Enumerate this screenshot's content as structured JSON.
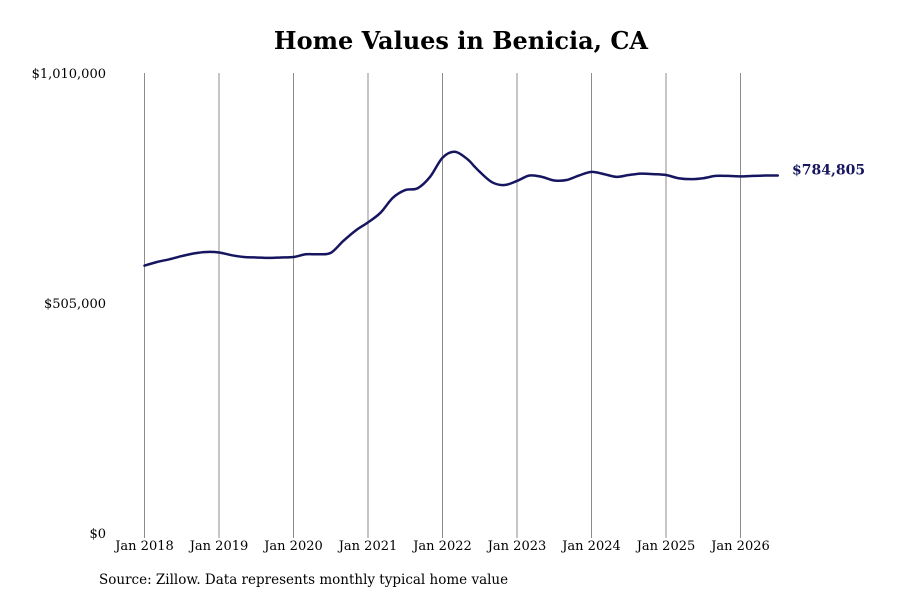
{
  "chart_data": {
    "type": "line",
    "title": "Home Values in Benicia, CA",
    "xlabel": "",
    "ylabel": "",
    "ylim": [
      0,
      1010000
    ],
    "y_ticks": [
      "$0",
      "$505,000",
      "$1,010,000"
    ],
    "x_ticks": [
      "Jan 2018",
      "Jan 2019",
      "Jan 2020",
      "Jan 2021",
      "Jan 2022",
      "Jan 2023",
      "Jan 2024",
      "Jan 2025",
      "Jan 2026"
    ],
    "grid": {
      "vertical": true,
      "horizontal": false
    },
    "line_color": "#151560",
    "grid_color": "#8c8c8c",
    "end_label": "$784,805",
    "series": [
      {
        "x": [
          "2018-01",
          "2018-03",
          "2018-05",
          "2018-07",
          "2018-09",
          "2018-11",
          "2019-01",
          "2019-03",
          "2019-05",
          "2019-07",
          "2019-09",
          "2019-11",
          "2020-01",
          "2020-03",
          "2020-05",
          "2020-07",
          "2020-09",
          "2020-11",
          "2021-01",
          "2021-03",
          "2021-05",
          "2021-07",
          "2021-09",
          "2021-11",
          "2022-01",
          "2022-03",
          "2022-05",
          "2022-06",
          "2022-07",
          "2022-09",
          "2022-11",
          "2023-01",
          "2023-03",
          "2023-05",
          "2023-07",
          "2023-09",
          "2023-11",
          "2024-01",
          "2024-03",
          "2024-05",
          "2024-07",
          "2024-09",
          "2024-11",
          "2025-01",
          "2025-03",
          "2025-05",
          "2025-07",
          "2025-09",
          "2025-11",
          "2026-01",
          "2026-03",
          "2026-05",
          "2026-07"
        ],
        "values": [
          587000,
          595000,
          601000,
          608000,
          614000,
          617000,
          616000,
          610000,
          606000,
          605000,
          604000,
          605000,
          606000,
          612000,
          612000,
          615000,
          641000,
          664000,
          682000,
          703000,
          736000,
          753000,
          757000,
          782000,
          824000,
          837000,
          821000,
          807000,
          793000,
          770000,
          764000,
          773000,
          785000,
          782000,
          774000,
          775000,
          785000,
          793000,
          788000,
          782000,
          786000,
          789000,
          788000,
          786000,
          779000,
          777000,
          779000,
          784000,
          784000,
          783000,
          784000,
          784805,
          784805
        ]
      }
    ]
  },
  "source": "Source: Zillow. Data represents monthly typical home value"
}
